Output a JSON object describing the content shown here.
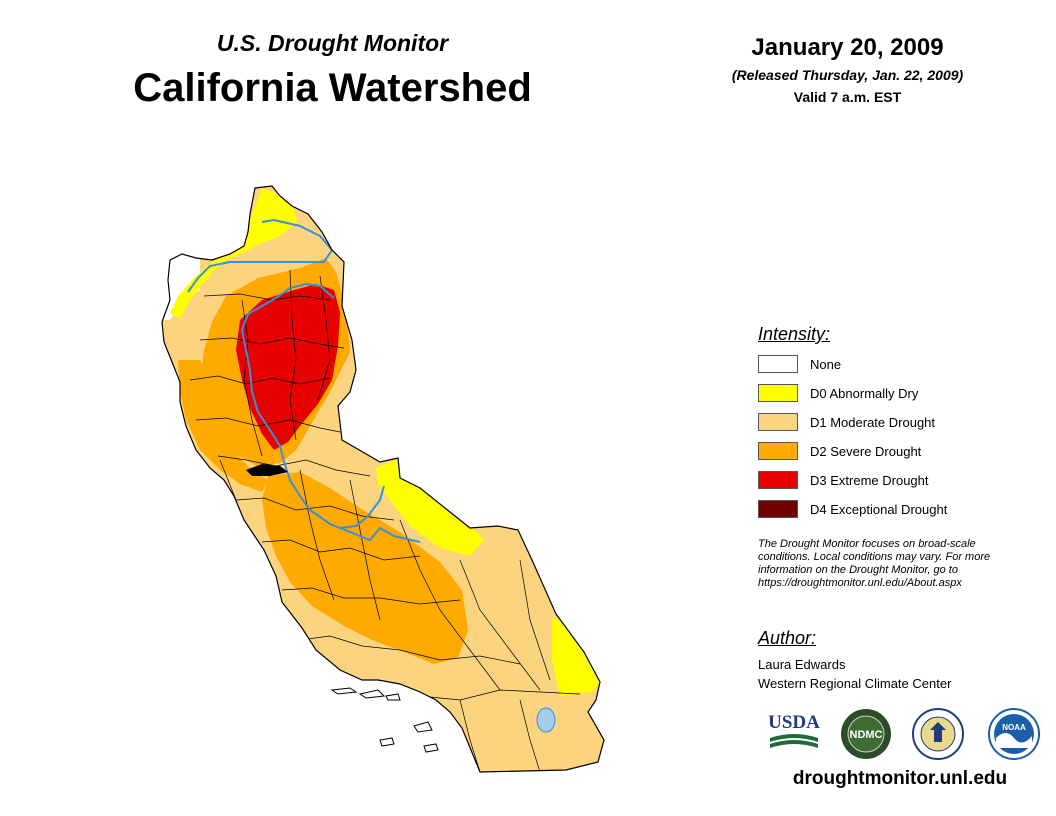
{
  "header": {
    "subtitle": "U.S. Drought Monitor",
    "title": "California Watershed",
    "date": "January 20, 2009",
    "released": "(Released Thursday, Jan. 22, 2009)",
    "valid": "Valid 7 a.m. EST"
  },
  "legend": {
    "title": "Intensity:",
    "items": [
      {
        "label": "None",
        "color": "#ffffff"
      },
      {
        "label": "D0 Abnormally Dry",
        "color": "#ffff00"
      },
      {
        "label": "D1 Moderate Drought",
        "color": "#fcd37f"
      },
      {
        "label": "D2 Severe Drought",
        "color": "#ffaa00"
      },
      {
        "label": "D3 Extreme Drought",
        "color": "#e60000"
      },
      {
        "label": "D4 Exceptional Drought",
        "color": "#730000"
      }
    ]
  },
  "note": {
    "line1": "The Drought Monitor focuses on broad-scale",
    "line2": "conditions. Local conditions may vary. For more",
    "line3": "information on the Drought Monitor, go to",
    "line4": "https://droughtmonitor.unl.edu/About.aspx"
  },
  "author": {
    "title": "Author:",
    "name": "Laura Edwards",
    "org": "Western Regional Climate Center"
  },
  "logos": {
    "usda": "USDA",
    "ndmc": "NDMC",
    "noaa": "NOAA"
  },
  "colors": {
    "none": "#ffffff",
    "d0": "#ffff00",
    "d1": "#fcd37f",
    "d2": "#ffaa00",
    "d3": "#e60000",
    "d4": "#730000",
    "river": "#3a8fd8"
  },
  "website": "droughtmonitor.unl.edu"
}
